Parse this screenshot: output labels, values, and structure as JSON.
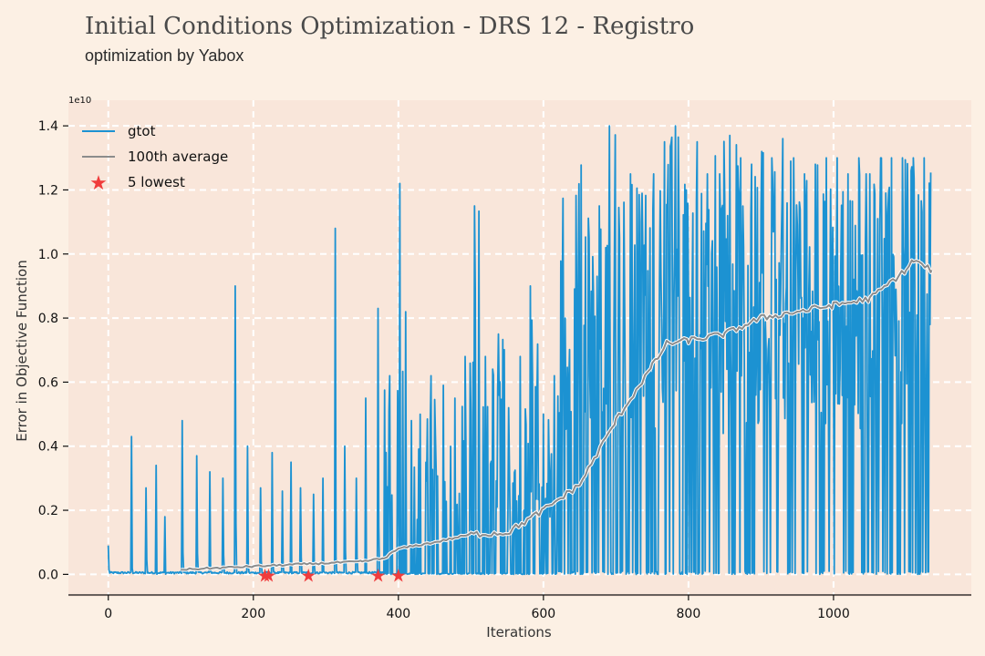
{
  "header": {
    "title": "Initial Conditions Optimization - DRS 12 - Registro",
    "subtitle": "optimization by Yabox"
  },
  "chart_data": {
    "type": "line",
    "xlabel": "Iterations",
    "ylabel": "Error in Objective Function",
    "y_scale_label": "1e10",
    "xlim": [
      -55,
      1190
    ],
    "ylim": [
      -0.07,
      1.48
    ],
    "xticks": [
      0,
      200,
      400,
      600,
      800,
      1000
    ],
    "yticks": [
      0.0,
      0.2,
      0.4,
      0.6,
      0.8,
      1.0,
      1.2,
      1.4
    ],
    "ytick_labels": [
      "0.0",
      "0.2",
      "0.4",
      "0.6",
      "0.8",
      "1.0",
      "1.2",
      "1.4"
    ],
    "grid": true,
    "legend": {
      "position": "top-left",
      "entries": [
        "gtot",
        "100th average",
        "5 lowest"
      ]
    },
    "series": [
      {
        "name": "gtot",
        "color": "#1c92d2",
        "n_points": 1135,
        "spikes": [
          [
            0,
            0.09
          ],
          [
            32,
            0.43
          ],
          [
            52,
            0.27
          ],
          [
            66,
            0.34
          ],
          [
            78,
            0.18
          ],
          [
            102,
            0.48
          ],
          [
            122,
            0.37
          ],
          [
            140,
            0.32
          ],
          [
            158,
            0.3
          ],
          [
            175,
            0.9
          ],
          [
            192,
            0.4
          ],
          [
            210,
            0.27
          ],
          [
            226,
            0.38
          ],
          [
            240,
            0.26
          ],
          [
            252,
            0.35
          ],
          [
            265,
            0.27
          ],
          [
            283,
            0.25
          ],
          [
            296,
            0.3
          ],
          [
            313,
            1.08
          ],
          [
            326,
            0.4
          ],
          [
            342,
            0.3
          ],
          [
            355,
            0.55
          ],
          [
            372,
            0.83
          ],
          [
            388,
            0.62
          ],
          [
            402,
            1.22
          ],
          [
            418,
            0.48
          ],
          [
            430,
            0.5
          ],
          [
            445,
            0.62
          ],
          [
            462,
            0.59
          ],
          [
            478,
            0.55
          ],
          [
            492,
            0.68
          ],
          [
            505,
            1.15
          ],
          [
            520,
            0.68
          ],
          [
            538,
            0.75
          ],
          [
            552,
            0.52
          ],
          [
            568,
            0.68
          ],
          [
            582,
            0.9
          ],
          [
            600,
            0.5
          ],
          [
            615,
            0.62
          ],
          [
            630,
            0.8
          ],
          [
            648,
            0.9
          ],
          [
            663,
            1.05
          ],
          [
            677,
            1.15
          ],
          [
            691,
            1.4
          ],
          [
            705,
            1.05
          ],
          [
            720,
            1.25
          ],
          [
            735,
            1.1
          ],
          [
            752,
            1.25
          ],
          [
            767,
            1.35
          ],
          [
            782,
            1.4
          ],
          [
            797,
            1.2
          ],
          [
            812,
            1.35
          ],
          [
            826,
            1.25
          ],
          [
            843,
            1.25
          ],
          [
            857,
            1.37
          ],
          [
            872,
            1.3
          ],
          [
            887,
            1.28
          ],
          [
            901,
            1.32
          ],
          [
            915,
            1.3
          ],
          [
            930,
            1.36
          ],
          [
            945,
            1.3
          ],
          [
            960,
            1.25
          ],
          [
            975,
            1.28
          ],
          [
            990,
            1.3
          ],
          [
            1005,
            1.3
          ],
          [
            1020,
            1.25
          ],
          [
            1035,
            1.3
          ],
          [
            1050,
            1.25
          ],
          [
            1065,
            1.3
          ],
          [
            1080,
            1.3
          ],
          [
            1095,
            1.3
          ],
          [
            1110,
            1.3
          ],
          [
            1125,
            1.3
          ]
        ]
      },
      {
        "name": "100th average",
        "color": "#8c8c8c",
        "x": [
          100,
          150,
          200,
          250,
          300,
          350,
          380,
          400,
          450,
          500,
          550,
          600,
          650,
          700,
          750,
          770,
          800,
          850,
          900,
          950,
          1000,
          1050,
          1100,
          1110,
          1135
        ],
        "y": [
          0.015,
          0.02,
          0.025,
          0.03,
          0.035,
          0.04,
          0.05,
          0.08,
          0.1,
          0.125,
          0.13,
          0.2,
          0.28,
          0.48,
          0.65,
          0.72,
          0.73,
          0.75,
          0.8,
          0.82,
          0.84,
          0.86,
          0.95,
          0.98,
          0.95
        ]
      },
      {
        "name": "5 lowest",
        "color": "#f03c3c",
        "marker": "star",
        "x": [
          216,
          221,
          276,
          372,
          400
        ],
        "y": [
          0.0,
          0.0,
          0.0,
          0.0,
          0.0
        ]
      }
    ]
  }
}
